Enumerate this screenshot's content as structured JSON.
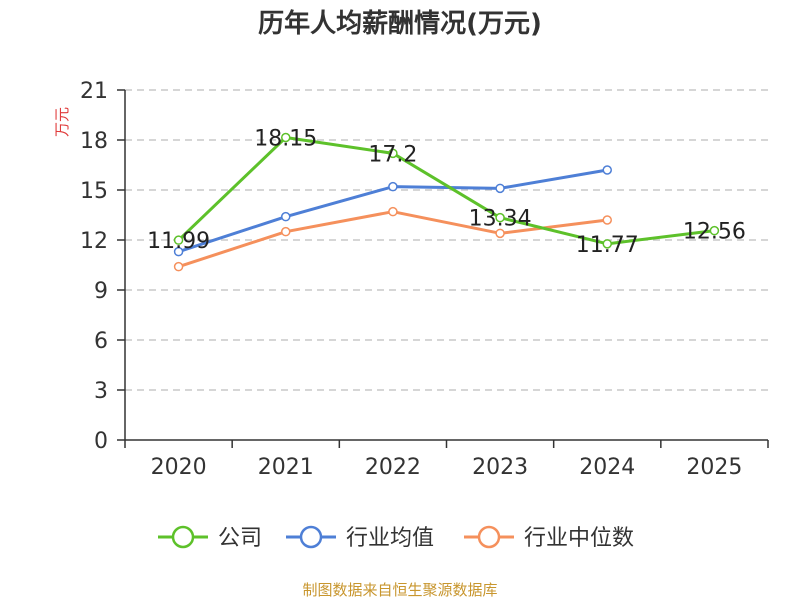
{
  "chart_data": {
    "type": "line",
    "title": "历年人均薪酬情况(万元)",
    "ylabel": "万元",
    "xlabel": "",
    "ylim": [
      0,
      21
    ],
    "yticks": [
      0,
      3,
      6,
      9,
      12,
      15,
      18,
      21
    ],
    "categories": [
      "2020",
      "2021",
      "2022",
      "2023",
      "2024",
      "2025"
    ],
    "grid": true,
    "legend_position": "bottom",
    "series": [
      {
        "name": "公司",
        "color": "#5dc12a",
        "values": [
          11.99,
          18.15,
          17.2,
          13.34,
          11.77,
          12.56
        ],
        "labels": [
          "11.99",
          "18.15",
          "17.2",
          "13.34",
          "11.77",
          "12.56"
        ]
      },
      {
        "name": "行业均值",
        "color": "#4e7fd6",
        "values": [
          11.3,
          13.4,
          15.2,
          15.1,
          16.2,
          null
        ]
      },
      {
        "name": "行业中位数",
        "color": "#f5905c",
        "values": [
          10.4,
          12.5,
          13.7,
          12.4,
          13.2,
          null
        ]
      }
    ]
  },
  "source_text": "制图数据来自恒生聚源数据库"
}
